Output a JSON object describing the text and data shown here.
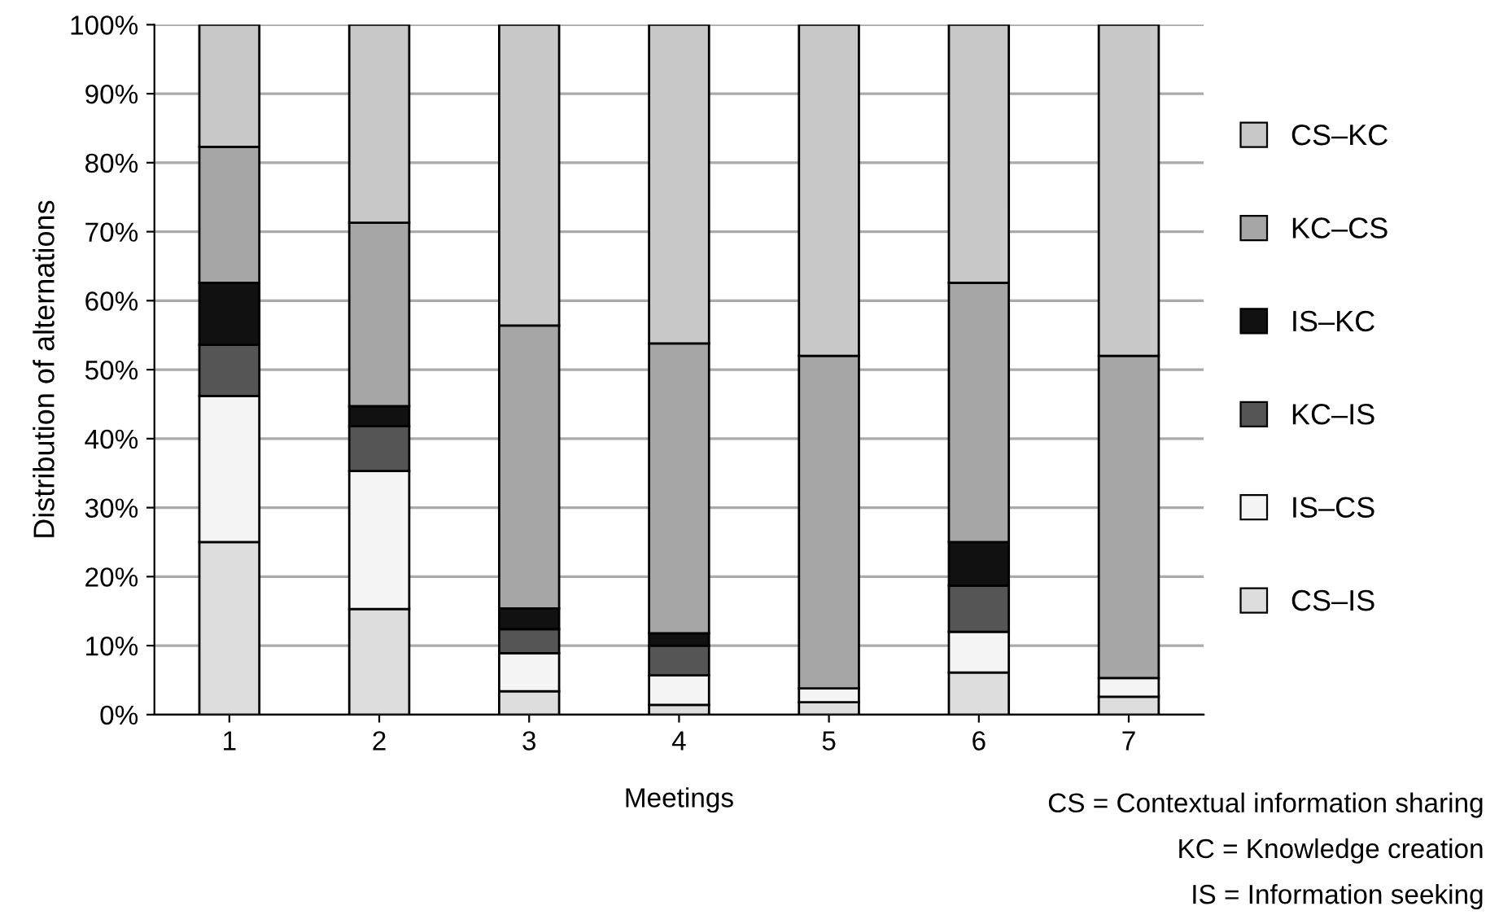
{
  "chart_data": {
    "type": "bar",
    "stacked": true,
    "categories": [
      "1",
      "2",
      "3",
      "4",
      "5",
      "6",
      "7"
    ],
    "series": [
      {
        "name": "CS–IS",
        "color": "#dddddd",
        "values": [
          25,
          15.3,
          3.4,
          1.4,
          1.8,
          6.1,
          2.6
        ]
      },
      {
        "name": "IS–CS",
        "color": "#f4f4f4",
        "values": [
          21.2,
          20,
          5.5,
          4.3,
          2,
          5.9,
          2.7
        ]
      },
      {
        "name": "KC–IS",
        "color": "#555555",
        "values": [
          7.4,
          6.5,
          3.5,
          4.3,
          null,
          6.7,
          null
        ]
      },
      {
        "name": "IS–KC",
        "color": "#111111",
        "values": [
          9,
          2.9,
          3,
          1.8,
          null,
          6.3,
          null
        ]
      },
      {
        "name": "KC–CS",
        "color": "#a6a6a6",
        "values": [
          19.7,
          26.6,
          41,
          42,
          48.2,
          37.6,
          46.7
        ]
      },
      {
        "name": "CS–KC",
        "color": "#c8c8c8",
        "values": [
          17.7,
          28.7,
          43.6,
          46.2,
          48,
          37.4,
          48
        ]
      }
    ],
    "xlabel": "Meetings",
    "ylabel": "Distribution of alternations",
    "ylim": [
      0,
      100
    ],
    "yticks": [
      {
        "value": 0,
        "label": "0%"
      },
      {
        "value": 10,
        "label": "10%"
      },
      {
        "value": 20,
        "label": "20%"
      },
      {
        "value": 30,
        "label": "30%"
      },
      {
        "value": 40,
        "label": "40%"
      },
      {
        "value": 50,
        "label": "50%"
      },
      {
        "value": 60,
        "label": "60%"
      },
      {
        "value": 70,
        "label": "70%"
      },
      {
        "value": 80,
        "label": "80%"
      },
      {
        "value": 90,
        "label": "90%"
      },
      {
        "value": 100,
        "label": "100%"
      }
    ],
    "grid": "y",
    "legend": "right",
    "annotations": [
      "CS = Contextual information sharing",
      "KC = Knowledge creation",
      "IS = Information seeking"
    ]
  }
}
